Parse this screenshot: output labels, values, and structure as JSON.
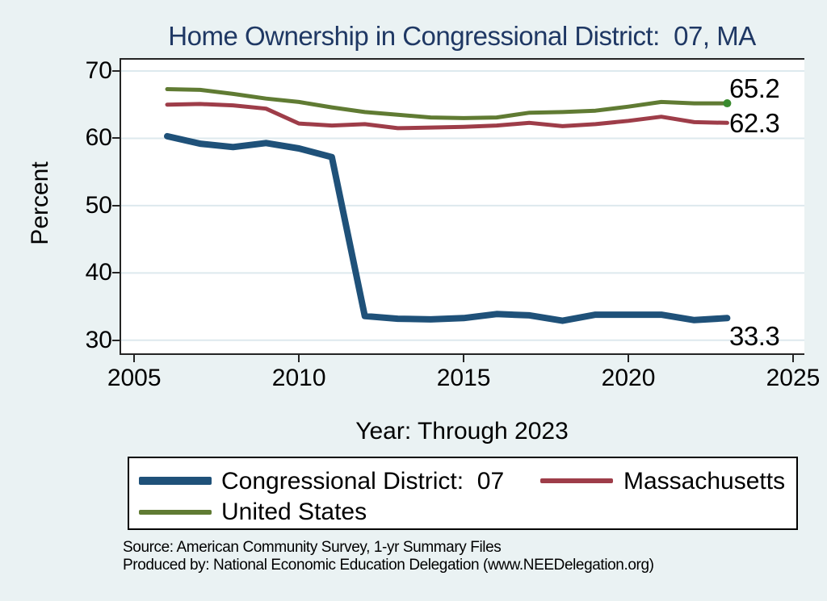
{
  "title": "Home Ownership in Congressional District:  07, MA",
  "colors": {
    "background": "#eaf2f3",
    "plot_background": "#ffffff",
    "grid": "#dde9ee",
    "axis": "#242424",
    "title_text": "#1f3864",
    "cd07_blue": "#1f5179",
    "massachusetts_red": "#9e3d49",
    "us_green": "#607b33",
    "end_dot_green": "#3a8a2e"
  },
  "chart_data": {
    "type": "line",
    "title": "Home Ownership in Congressional District:  07, MA",
    "xlabel": "Year: Through 2023",
    "ylabel": "Percent",
    "xlim": [
      2005,
      2025
    ],
    "ylim": [
      30,
      70
    ],
    "x_ticks": [
      2005,
      2010,
      2015,
      2020,
      2025
    ],
    "y_ticks": [
      70,
      60,
      50,
      40,
      30
    ],
    "grid": "horizontal",
    "legend_position": "bottom",
    "x": [
      2006,
      2007,
      2008,
      2009,
      2010,
      2011,
      2012,
      2013,
      2014,
      2015,
      2016,
      2017,
      2018,
      2019,
      2020,
      2021,
      2022,
      2023
    ],
    "series": [
      {
        "name": "Congressional District:  07",
        "color": "#1f5179",
        "line_width": 8,
        "values": [
          60.3,
          59.2,
          58.7,
          59.3,
          58.5,
          57.2,
          33.6,
          33.2,
          33.1,
          33.3,
          33.9,
          33.7,
          32.9,
          33.8,
          33.8,
          33.8,
          33.0,
          33.3
        ],
        "end_label": "33.3",
        "end_dot": false
      },
      {
        "name": "Massachusetts",
        "color": "#9e3d49",
        "line_width": 5,
        "values": [
          65.0,
          65.1,
          64.9,
          64.4,
          62.2,
          61.9,
          62.1,
          61.5,
          61.6,
          61.7,
          61.9,
          62.3,
          61.8,
          62.1,
          62.6,
          63.2,
          62.4,
          62.3
        ],
        "end_label": "62.3",
        "end_dot": false
      },
      {
        "name": "United States",
        "color": "#607b33",
        "line_width": 5,
        "values": [
          67.3,
          67.2,
          66.6,
          65.9,
          65.4,
          64.6,
          63.9,
          63.5,
          63.1,
          63.0,
          63.1,
          63.8,
          63.9,
          64.1,
          64.7,
          65.4,
          65.2,
          65.2
        ],
        "end_label": "65.2",
        "end_dot": true
      }
    ]
  },
  "source": {
    "line1": "Source: American Community Survey, 1-yr Summary Files",
    "line2": "Produced by: National Economic Education Delegation (www.NEEDelegation.org)"
  }
}
